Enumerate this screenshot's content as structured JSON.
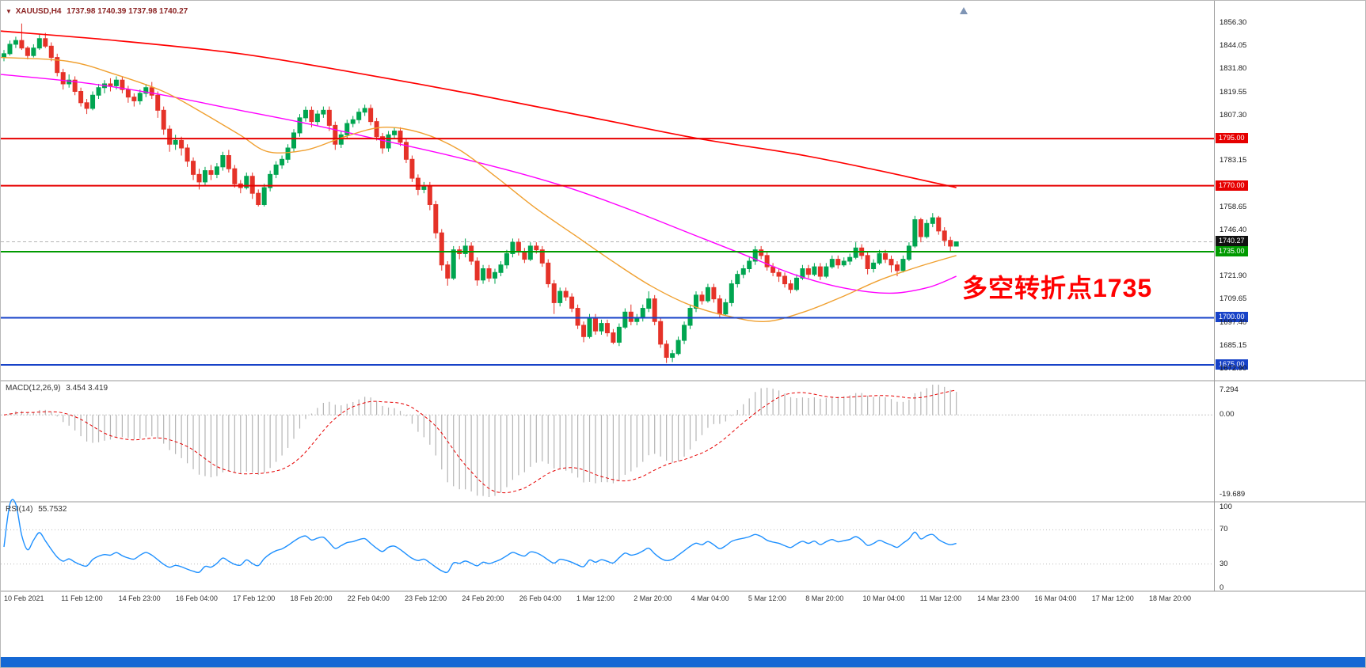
{
  "window": {
    "symbol_period": "XAUUSD,H4",
    "ohlc": "1737.98 1740.39 1737.98 1740.27"
  },
  "annotation": {
    "text": "多空转折点1735",
    "color": "#ff0000"
  },
  "colors": {
    "candle_up": "#00a550",
    "candle_down": "#e53228",
    "ma_slow": "#ff0000",
    "ma_medium": "#ff00ff",
    "ma_fast": "#f0a030",
    "macd_histogram": "#b4b4b4",
    "macd_signal": "#e60000",
    "rsi": "#1e90ff",
    "badge_black": "#111111",
    "bottom_bar": "#1568d4"
  },
  "price_axis": {
    "current_price": "1740.27",
    "gridline_labels": [
      "1856.30",
      "1844.05",
      "1831.80",
      "1819.55",
      "1807.30",
      "1783.15",
      "1758.65",
      "1746.40",
      "1721.90",
      "1709.65",
      "1697.40",
      "1685.15",
      "1672.90"
    ]
  },
  "hlines": [
    {
      "price": 1795.0,
      "label": "1795.00",
      "color": "#e60000"
    },
    {
      "price": 1770.0,
      "label": "1770.00",
      "color": "#e60000"
    },
    {
      "price": 1735.0,
      "label": "1735.00",
      "color": "#009a00"
    },
    {
      "price": 1700.0,
      "label": "1700.00",
      "color": "#1742c8"
    },
    {
      "price": 1675.0,
      "label": "1675.00",
      "color": "#1742c8"
    }
  ],
  "chart_data": {
    "type": "candlestick",
    "symbol": "XAUUSD",
    "timeframe": "H4",
    "last": {
      "open": 1737.98,
      "high": 1740.39,
      "low": 1737.98,
      "close": 1740.27
    },
    "time_labels": [
      "10 Feb 2021",
      "11 Feb 12:00",
      "14 Feb 23:00",
      "16 Feb 04:00",
      "17 Feb 12:00",
      "18 Feb 20:00",
      "22 Feb 04:00",
      "23 Feb 12:00",
      "24 Feb 20:00",
      "26 Feb 04:00",
      "1 Mar 12:00",
      "2 Mar 20:00",
      "4 Mar 04:00",
      "5 Mar 12:00",
      "8 Mar 20:00",
      "10 Mar 04:00",
      "11 Mar 12:00",
      "14 Mar 23:00",
      "16 Mar 04:00",
      "17 Mar 12:00",
      "18 Mar 20:00"
    ],
    "candles": [
      [
        1838,
        1842,
        1836,
        1840
      ],
      [
        1840,
        1847,
        1839,
        1845
      ],
      [
        1845,
        1849,
        1843,
        1847
      ],
      [
        1847,
        1856,
        1842,
        1843
      ],
      [
        1843,
        1844,
        1837,
        1839
      ],
      [
        1839,
        1845,
        1838,
        1843
      ],
      [
        1843,
        1850,
        1842,
        1848
      ],
      [
        1848,
        1851,
        1843,
        1844
      ],
      [
        1844,
        1846,
        1836,
        1838
      ],
      [
        1838,
        1840,
        1828,
        1830
      ],
      [
        1830,
        1832,
        1821,
        1824
      ],
      [
        1824,
        1829,
        1822,
        1826
      ],
      [
        1826,
        1828,
        1818,
        1820
      ],
      [
        1820,
        1822,
        1812,
        1814
      ],
      [
        1814,
        1816,
        1808,
        1811
      ],
      [
        1811,
        1820,
        1810,
        1818
      ],
      [
        1818,
        1824,
        1816,
        1822
      ],
      [
        1822,
        1826,
        1819,
        1824
      ],
      [
        1824,
        1827,
        1820,
        1823
      ],
      [
        1823,
        1828,
        1821,
        1826
      ],
      [
        1826,
        1828,
        1819,
        1821
      ],
      [
        1821,
        1823,
        1814,
        1817
      ],
      [
        1817,
        1819,
        1812,
        1815
      ],
      [
        1815,
        1821,
        1813,
        1819
      ],
      [
        1819,
        1824,
        1817,
        1822
      ],
      [
        1822,
        1825,
        1816,
        1818
      ],
      [
        1818,
        1820,
        1806,
        1810
      ],
      [
        1810,
        1812,
        1797,
        1800
      ],
      [
        1800,
        1802,
        1788,
        1792
      ],
      [
        1792,
        1797,
        1789,
        1794
      ],
      [
        1794,
        1796,
        1786,
        1790
      ],
      [
        1790,
        1792,
        1780,
        1783
      ],
      [
        1783,
        1785,
        1773,
        1776
      ],
      [
        1776,
        1779,
        1768,
        1772
      ],
      [
        1772,
        1780,
        1770,
        1778
      ],
      [
        1778,
        1781,
        1773,
        1776
      ],
      [
        1776,
        1782,
        1774,
        1780
      ],
      [
        1780,
        1788,
        1778,
        1786
      ],
      [
        1786,
        1789,
        1777,
        1779
      ],
      [
        1779,
        1781,
        1769,
        1771
      ],
      [
        1771,
        1773,
        1766,
        1769
      ],
      [
        1769,
        1777,
        1768,
        1775
      ],
      [
        1775,
        1777,
        1763,
        1766
      ],
      [
        1766,
        1768,
        1759,
        1760
      ],
      [
        1760,
        1771,
        1759,
        1769
      ],
      [
        1769,
        1778,
        1767,
        1776
      ],
      [
        1776,
        1783,
        1774,
        1781
      ],
      [
        1781,
        1786,
        1779,
        1784
      ],
      [
        1784,
        1792,
        1782,
        1790
      ],
      [
        1790,
        1800,
        1788,
        1798
      ],
      [
        1798,
        1808,
        1796,
        1806
      ],
      [
        1806,
        1812,
        1804,
        1810
      ],
      [
        1810,
        1812,
        1801,
        1804
      ],
      [
        1804,
        1810,
        1802,
        1808
      ],
      [
        1808,
        1812,
        1806,
        1810
      ],
      [
        1810,
        1812,
        1799,
        1802
      ],
      [
        1802,
        1804,
        1789,
        1792
      ],
      [
        1792,
        1799,
        1790,
        1797
      ],
      [
        1797,
        1805,
        1795,
        1803
      ],
      [
        1803,
        1807,
        1801,
        1805
      ],
      [
        1805,
        1811,
        1803,
        1809
      ],
      [
        1809,
        1813,
        1807,
        1811
      ],
      [
        1811,
        1813,
        1802,
        1804
      ],
      [
        1804,
        1806,
        1794,
        1796
      ],
      [
        1796,
        1798,
        1787,
        1790
      ],
      [
        1790,
        1799,
        1788,
        1797
      ],
      [
        1797,
        1801,
        1795,
        1799
      ],
      [
        1799,
        1801,
        1791,
        1793
      ],
      [
        1793,
        1795,
        1782,
        1784
      ],
      [
        1784,
        1786,
        1772,
        1774
      ],
      [
        1774,
        1776,
        1765,
        1768
      ],
      [
        1768,
        1772,
        1766,
        1770
      ],
      [
        1770,
        1772,
        1757,
        1760
      ],
      [
        1760,
        1762,
        1742,
        1745
      ],
      [
        1745,
        1747,
        1725,
        1728
      ],
      [
        1728,
        1730,
        1717,
        1721
      ],
      [
        1721,
        1738,
        1720,
        1736
      ],
      [
        1736,
        1738,
        1731,
        1734
      ],
      [
        1734,
        1742,
        1732,
        1738
      ],
      [
        1738,
        1740,
        1728,
        1730
      ],
      [
        1730,
        1732,
        1717,
        1720
      ],
      [
        1720,
        1728,
        1718,
        1726
      ],
      [
        1726,
        1728,
        1719,
        1721
      ],
      [
        1721,
        1726,
        1718,
        1724
      ],
      [
        1724,
        1730,
        1722,
        1728
      ],
      [
        1728,
        1736,
        1726,
        1734
      ],
      [
        1734,
        1742,
        1732,
        1740
      ],
      [
        1740,
        1742,
        1733,
        1735
      ],
      [
        1735,
        1737,
        1729,
        1731
      ],
      [
        1731,
        1740,
        1730,
        1738
      ],
      [
        1738,
        1740,
        1734,
        1736
      ],
      [
        1736,
        1738,
        1727,
        1729
      ],
      [
        1729,
        1731,
        1716,
        1718
      ],
      [
        1718,
        1720,
        1702,
        1708
      ],
      [
        1708,
        1716,
        1706,
        1714
      ],
      [
        1714,
        1716,
        1709,
        1711
      ],
      [
        1711,
        1713,
        1703,
        1705
      ],
      [
        1705,
        1707,
        1694,
        1696
      ],
      [
        1696,
        1698,
        1687,
        1690
      ],
      [
        1690,
        1702,
        1689,
        1700
      ],
      [
        1700,
        1702,
        1691,
        1693
      ],
      [
        1693,
        1699,
        1691,
        1697
      ],
      [
        1697,
        1699,
        1690,
        1692
      ],
      [
        1692,
        1694,
        1686,
        1687
      ],
      [
        1687,
        1697,
        1685,
        1695
      ],
      [
        1695,
        1705,
        1694,
        1703
      ],
      [
        1703,
        1707,
        1696,
        1698
      ],
      [
        1698,
        1702,
        1696,
        1700
      ],
      [
        1700,
        1707,
        1698,
        1705
      ],
      [
        1705,
        1714,
        1703,
        1710
      ],
      [
        1710,
        1712,
        1696,
        1698
      ],
      [
        1698,
        1700,
        1684,
        1686
      ],
      [
        1686,
        1688,
        1676,
        1679
      ],
      [
        1679,
        1683,
        1676.5,
        1681
      ],
      [
        1681,
        1690,
        1680,
        1688
      ],
      [
        1688,
        1698,
        1686,
        1696
      ],
      [
        1696,
        1707,
        1694,
        1705
      ],
      [
        1705,
        1714,
        1703,
        1712
      ],
      [
        1712,
        1714,
        1707,
        1709
      ],
      [
        1709,
        1718,
        1708,
        1716
      ],
      [
        1716,
        1718,
        1708,
        1710
      ],
      [
        1710,
        1712,
        1700,
        1702
      ],
      [
        1702,
        1710,
        1701,
        1708
      ],
      [
        1708,
        1720,
        1706,
        1718
      ],
      [
        1718,
        1725,
        1716,
        1723
      ],
      [
        1723,
        1728,
        1721,
        1726
      ],
      [
        1726,
        1732,
        1724,
        1730
      ],
      [
        1730,
        1738,
        1728,
        1736
      ],
      [
        1736,
        1738,
        1731,
        1733
      ],
      [
        1733,
        1735,
        1725,
        1727
      ],
      [
        1727,
        1729,
        1722,
        1724
      ],
      [
        1724,
        1726,
        1719,
        1722
      ],
      [
        1722,
        1724,
        1716,
        1718
      ],
      [
        1718,
        1720,
        1713,
        1715
      ],
      [
        1715,
        1723,
        1714,
        1721
      ],
      [
        1721,
        1728,
        1720,
        1726
      ],
      [
        1726,
        1728,
        1721,
        1723
      ],
      [
        1723,
        1729,
        1722,
        1727
      ],
      [
        1727,
        1729,
        1720,
        1722
      ],
      [
        1722,
        1729,
        1721,
        1727
      ],
      [
        1727,
        1733,
        1726,
        1731
      ],
      [
        1731,
        1733,
        1726,
        1728
      ],
      [
        1728,
        1732,
        1727,
        1730
      ],
      [
        1730,
        1734,
        1728,
        1732
      ],
      [
        1732,
        1740,
        1731,
        1737
      ],
      [
        1737,
        1739,
        1731,
        1733
      ],
      [
        1733,
        1735,
        1723,
        1726
      ],
      [
        1726,
        1731,
        1724,
        1729
      ],
      [
        1729,
        1736,
        1728,
        1734
      ],
      [
        1734,
        1736,
        1729,
        1731
      ],
      [
        1731,
        1733,
        1724,
        1728
      ],
      [
        1728,
        1730,
        1722,
        1725
      ],
      [
        1725,
        1733,
        1724,
        1731
      ],
      [
        1731,
        1740,
        1730,
        1738
      ],
      [
        1738,
        1754,
        1737,
        1752
      ],
      [
        1752,
        1753,
        1740,
        1743
      ],
      [
        1743,
        1752,
        1742,
        1750
      ],
      [
        1750,
        1755.5,
        1748,
        1753
      ],
      [
        1753,
        1754,
        1744,
        1746
      ],
      [
        1746,
        1748,
        1738,
        1741
      ],
      [
        1741,
        1743,
        1735,
        1737.98
      ],
      [
        1737.98,
        1740.39,
        1737.98,
        1740.27
      ]
    ],
    "moving_averages": [
      {
        "name": "slow",
        "color": "#ff0000",
        "points": [
          [
            0,
            1852
          ],
          [
            0.12,
            1847
          ],
          [
            0.25,
            1840
          ],
          [
            0.37,
            1830
          ],
          [
            0.5,
            1818
          ],
          [
            0.62,
            1806
          ],
          [
            0.73,
            1795
          ],
          [
            0.83,
            1787
          ],
          [
            0.91,
            1779
          ],
          [
            1,
            1769
          ]
        ]
      },
      {
        "name": "medium",
        "color": "#ff00ff",
        "points": [
          [
            0,
            1829
          ],
          [
            0.08,
            1825
          ],
          [
            0.16,
            1819
          ],
          [
            0.24,
            1811
          ],
          [
            0.32,
            1803
          ],
          [
            0.4,
            1794
          ],
          [
            0.47,
            1786
          ],
          [
            0.54,
            1777
          ],
          [
            0.6,
            1768
          ],
          [
            0.66,
            1757
          ],
          [
            0.72,
            1745
          ],
          [
            0.78,
            1733
          ],
          [
            0.83,
            1723
          ],
          [
            0.88,
            1716
          ],
          [
            0.93,
            1713
          ],
          [
            0.97,
            1716
          ],
          [
            1,
            1722
          ]
        ]
      },
      {
        "name": "fast",
        "color": "#f0a030",
        "points": [
          [
            0,
            1838
          ],
          [
            0.07,
            1836
          ],
          [
            0.12,
            1829
          ],
          [
            0.17,
            1820
          ],
          [
            0.21,
            1809
          ],
          [
            0.25,
            1797
          ],
          [
            0.28,
            1788
          ],
          [
            0.32,
            1789
          ],
          [
            0.36,
            1796
          ],
          [
            0.4,
            1801
          ],
          [
            0.44,
            1798
          ],
          [
            0.48,
            1789
          ],
          [
            0.52,
            1774
          ],
          [
            0.56,
            1758
          ],
          [
            0.6,
            1744
          ],
          [
            0.64,
            1730
          ],
          [
            0.68,
            1717
          ],
          [
            0.72,
            1707
          ],
          [
            0.76,
            1701
          ],
          [
            0.8,
            1698
          ],
          [
            0.84,
            1703
          ],
          [
            0.88,
            1711
          ],
          [
            0.92,
            1720
          ],
          [
            0.96,
            1727
          ],
          [
            1,
            1733
          ]
        ]
      }
    ],
    "indicators": [
      {
        "name": "MACD",
        "label": "MACD(12,26,9)",
        "values": "3.454 3.419",
        "axis_labels": [
          "7.294",
          "0.00",
          "-19.689"
        ]
      },
      {
        "name": "RSI",
        "label": "RSI(14)",
        "values": "55.7532",
        "axis_labels": [
          "100",
          "70",
          "30",
          "0"
        ],
        "levels": [
          70,
          30
        ]
      }
    ]
  }
}
